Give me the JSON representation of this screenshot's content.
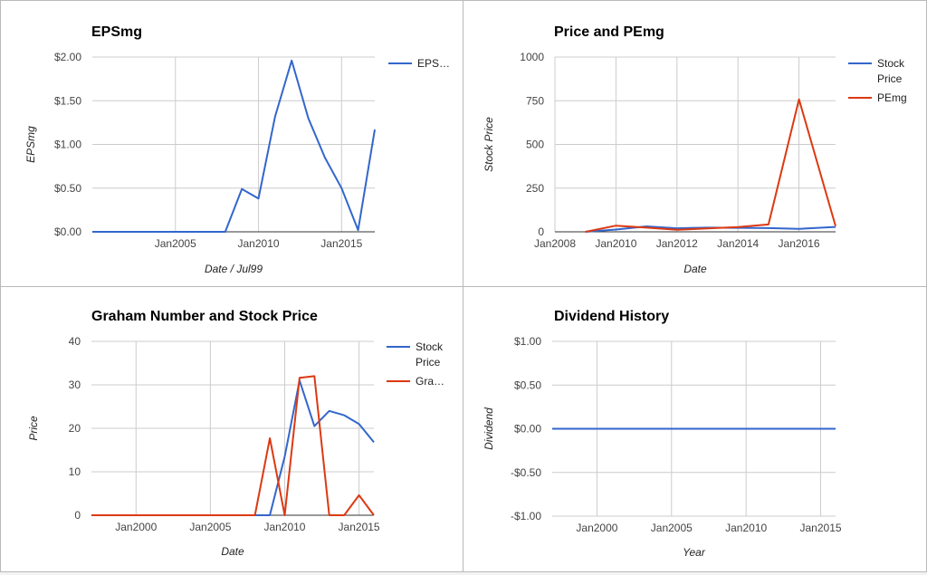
{
  "colors": {
    "blue": "#3366cc",
    "red": "#dc3912",
    "grid": "#cccccc"
  },
  "chart_data": [
    {
      "type": "line",
      "title": "EPSmg",
      "xlabel": "Date / Jul99",
      "ylabel": "EPSmg",
      "xlim": [
        2000.0,
        2017.0
      ],
      "ylim": [
        0,
        2
      ],
      "x_ticks": [
        2005,
        2010,
        2015
      ],
      "x_tick_labels": [
        "Jan2005",
        "Jan2010",
        "Jan2015"
      ],
      "y_ticks": [
        0,
        0.5,
        1,
        1.5,
        2
      ],
      "y_tick_labels": [
        "$0.00",
        "$0.50",
        "$1.00",
        "$1.50",
        "$2.00"
      ],
      "grid": true,
      "legend": "right",
      "series": [
        {
          "name": "EPS…",
          "color": "#3366cc",
          "x": [
            2000.0,
            2007.0,
            2008.0,
            2009.0,
            2010.0,
            2011.0,
            2012.0,
            2013.0,
            2014.0,
            2015.0,
            2016.0,
            2017.0
          ],
          "y": [
            0,
            0,
            0,
            0.49,
            0.38,
            1.32,
            1.96,
            1.3,
            0.85,
            0.5,
            0.02,
            1.17
          ]
        }
      ]
    },
    {
      "type": "line",
      "title": "Price and PEmg",
      "xlabel": "Date",
      "ylabel": "Stock Price",
      "xlim": [
        2008.0,
        2017.2
      ],
      "ylim": [
        0,
        1000
      ],
      "x_ticks": [
        2008,
        2010,
        2012,
        2014,
        2016
      ],
      "x_tick_labels": [
        "Jan2008",
        "Jan2010",
        "Jan2012",
        "Jan2014",
        "Jan2016"
      ],
      "y_ticks": [
        0,
        250,
        500,
        750,
        1000
      ],
      "y_tick_labels": [
        "0",
        "250",
        "500",
        "750",
        "1000"
      ],
      "grid": true,
      "legend": "right",
      "series": [
        {
          "name": "Stock Price",
          "color": "#3366cc",
          "x": [
            2009.0,
            2010.0,
            2011.0,
            2012.0,
            2013.0,
            2014.0,
            2015.0,
            2016.0,
            2017.2
          ],
          "y": [
            0,
            13,
            31,
            20,
            24,
            23,
            21,
            17,
            28
          ]
        },
        {
          "name": "PEmg",
          "color": "#dc3912",
          "x": [
            2009.0,
            2010.0,
            2011.0,
            2012.0,
            2013.0,
            2014.0,
            2015.0,
            2016.0,
            2017.2
          ],
          "y": [
            0,
            35,
            24,
            12,
            19,
            27,
            42,
            758,
            33
          ]
        }
      ]
    },
    {
      "type": "line",
      "title": "Graham Number and Stock Price",
      "xlabel": "Date",
      "ylabel": "Price",
      "xlim": [
        1997.0,
        2016.0
      ],
      "ylim": [
        0,
        40
      ],
      "x_ticks": [
        2000,
        2005,
        2010,
        2015
      ],
      "x_tick_labels": [
        "Jan2000",
        "Jan2005",
        "Jan2010",
        "Jan2015"
      ],
      "y_ticks": [
        0,
        10,
        20,
        30,
        40
      ],
      "y_tick_labels": [
        "0",
        "10",
        "20",
        "30",
        "40"
      ],
      "grid": true,
      "legend": "right",
      "series": [
        {
          "name": "Stock Price",
          "color": "#3366cc",
          "x": [
            1997.0,
            2009.0,
            2010.0,
            2011.0,
            2012.0,
            2013.0,
            2014.0,
            2015.0,
            2016.0
          ],
          "y": [
            0,
            0,
            13.5,
            31,
            20.5,
            24,
            23,
            21,
            16.8
          ]
        },
        {
          "name": "Gra…",
          "color": "#dc3912",
          "x": [
            1997.0,
            2008.0,
            2009.0,
            2010.0,
            2011.0,
            2012.0,
            2013.0,
            2014.0,
            2015.0,
            2016.0
          ],
          "y": [
            0,
            0,
            17.7,
            0,
            31.6,
            32,
            0,
            0,
            4.6,
            0
          ]
        }
      ]
    },
    {
      "type": "line",
      "title": "Dividend History",
      "xlabel": "Year",
      "ylabel": "Dividend",
      "xlim": [
        1997.0,
        2016.0
      ],
      "ylim": [
        -1,
        1
      ],
      "x_ticks": [
        2000,
        2005,
        2010,
        2015
      ],
      "x_tick_labels": [
        "Jan2000",
        "Jan2005",
        "Jan2010",
        "Jan2015"
      ],
      "y_ticks": [
        -1,
        -0.5,
        0,
        0.5,
        1
      ],
      "y_tick_labels": [
        "-$1.00",
        "-$0.50",
        "$0.00",
        "$0.50",
        "$1.00"
      ],
      "grid": true,
      "legend": "none",
      "series": [
        {
          "name": "",
          "color": "#3366cc",
          "x": [
            1997.0,
            2016.0
          ],
          "y": [
            0,
            0
          ]
        }
      ]
    }
  ]
}
